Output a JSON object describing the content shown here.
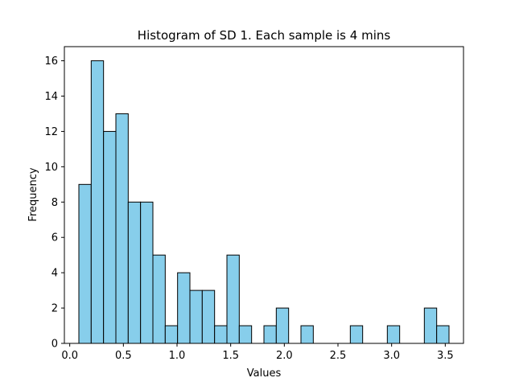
{
  "chart_data": {
    "type": "bar",
    "title": "Histogram of SD 1. Each sample is 4 mins",
    "xlabel": "Values",
    "ylabel": "Frequency",
    "xlim": [
      -0.05,
      3.67
    ],
    "ylim": [
      0,
      16.8
    ],
    "xticks": [
      0.0,
      0.5,
      1.0,
      1.5,
      2.0,
      2.5,
      3.0,
      3.5
    ],
    "xtick_labels": [
      "0.0",
      "0.5",
      "1.0",
      "1.5",
      "2.0",
      "2.5",
      "3.0",
      "3.5"
    ],
    "yticks": [
      0,
      2,
      4,
      6,
      8,
      10,
      12,
      14,
      16
    ],
    "ytick_labels": [
      "0",
      "2",
      "4",
      "6",
      "8",
      "10",
      "12",
      "14",
      "16"
    ],
    "bin_edges": [
      0.085,
      0.2,
      0.315,
      0.43,
      0.545,
      0.66,
      0.775,
      0.89,
      1.005,
      1.12,
      1.235,
      1.35,
      1.465,
      1.58,
      1.695,
      1.81,
      1.925,
      2.04,
      2.155,
      2.27,
      2.385,
      2.5,
      2.615,
      2.73,
      2.845,
      2.96,
      3.075,
      3.19,
      3.305,
      3.42,
      3.535
    ],
    "counts": [
      9,
      16,
      12,
      13,
      8,
      8,
      5,
      1,
      4,
      3,
      3,
      1,
      5,
      1,
      0,
      1,
      2,
      0,
      1,
      0,
      0,
      0,
      1,
      0,
      0,
      1,
      0,
      0,
      2,
      1
    ],
    "bar_color": "#87CEEB",
    "edge_color": "#000000",
    "grid": false,
    "legend": "none"
  }
}
